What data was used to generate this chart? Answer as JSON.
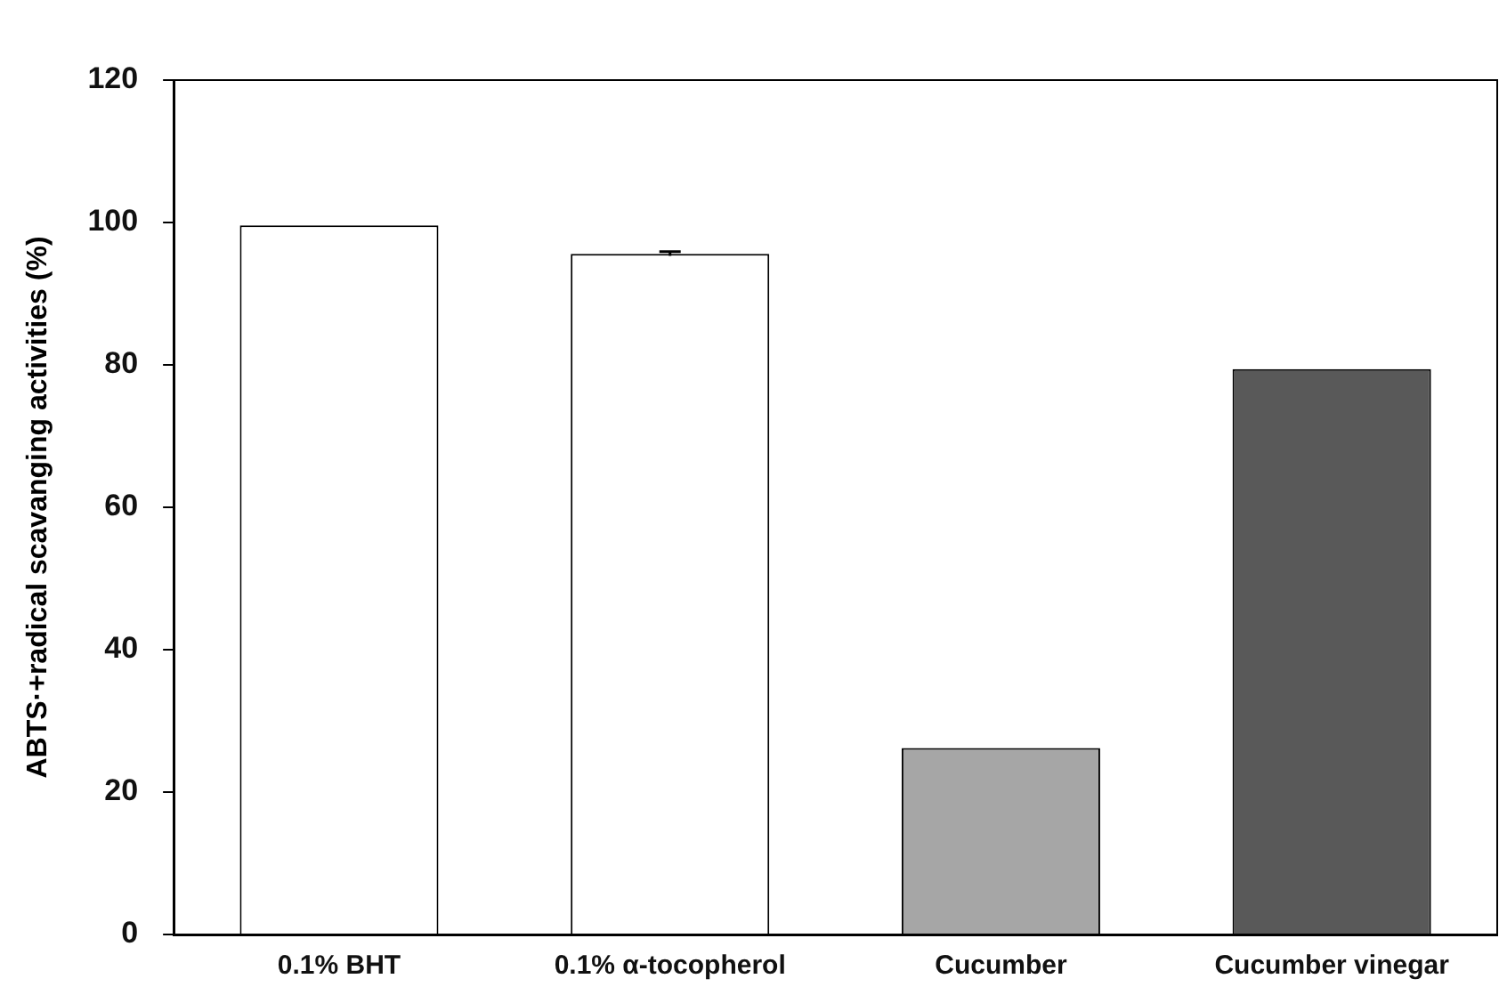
{
  "chart_data": {
    "type": "bar",
    "ylabel": "ABTS·+radical scavanging activities (%)",
    "categories": [
      "0.1% BHT",
      "0.1% α-tocopherol",
      "Cucumber",
      "Cucumber vinegar"
    ],
    "values": [
      99.6,
      95.6,
      26.2,
      79.4
    ],
    "colors": [
      "#ffffff",
      "#ffffff",
      "#a6a6a6",
      "#595959"
    ],
    "errors": [
      null,
      0.3,
      null,
      null
    ],
    "ylim": [
      0,
      120
    ],
    "yticks": [
      0,
      20,
      40,
      60,
      80,
      100,
      120
    ],
    "grid": false,
    "legend": false
  }
}
